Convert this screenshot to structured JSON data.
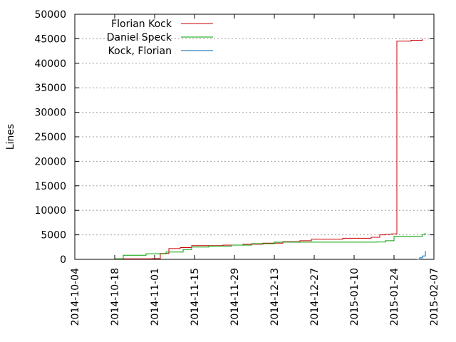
{
  "chart_data": {
    "type": "line",
    "title": "",
    "xlabel": "",
    "ylabel": "Lines",
    "xlim": [
      "2014-10-04",
      "2015-02-07"
    ],
    "ylim": [
      0,
      50000
    ],
    "x_ticks": [
      "2014-10-04",
      "2014-10-18",
      "2014-11-01",
      "2014-11-15",
      "2014-11-29",
      "2014-12-13",
      "2014-12-27",
      "2015-01-10",
      "2015-01-24",
      "2015-02-07"
    ],
    "y_ticks": [
      "0",
      "5000",
      "10000",
      "15000",
      "20000",
      "25000",
      "30000",
      "35000",
      "40000",
      "45000",
      "50000"
    ],
    "grid": "horizontal dotted",
    "legend_position": "top-left",
    "series": [
      {
        "name": "Florian Kock",
        "color": "#cc0000",
        "x": [
          "2014-10-18",
          "2014-10-31",
          "2014-11-03",
          "2014-11-06",
          "2014-11-10",
          "2014-11-14",
          "2014-11-18",
          "2014-11-25",
          "2014-12-02",
          "2014-12-09",
          "2014-12-16",
          "2014-12-22",
          "2014-12-26",
          "2015-01-06",
          "2015-01-16",
          "2015-01-19",
          "2015-01-21",
          "2015-01-23",
          "2015-01-25",
          "2015-01-30",
          "2015-02-03"
        ],
        "y": [
          100,
          150,
          1200,
          2200,
          2400,
          2800,
          2800,
          2900,
          3100,
          3300,
          3600,
          3800,
          4100,
          4300,
          4500,
          5000,
          5100,
          5200,
          44500,
          44700,
          45000
        ]
      },
      {
        "name": "Daniel Speck",
        "color": "#00a000",
        "x": [
          "2014-10-18",
          "2014-10-21",
          "2014-10-29",
          "2014-11-05",
          "2014-11-11",
          "2014-11-14",
          "2014-11-20",
          "2014-11-28",
          "2014-12-05",
          "2014-12-13",
          "2015-01-18",
          "2015-01-21",
          "2015-01-24",
          "2015-02-03",
          "2015-02-04"
        ],
        "y": [
          100,
          850,
          1150,
          1500,
          2000,
          2500,
          2700,
          2900,
          3200,
          3500,
          3550,
          3800,
          4700,
          5100,
          5400
        ]
      },
      {
        "name": "Kock, Florian",
        "color": "#0060ad",
        "x": [
          "2015-02-01",
          "2015-02-02",
          "2015-02-03",
          "2015-02-04",
          "2015-02-04"
        ],
        "y": [
          0,
          300,
          700,
          1200,
          1700
        ]
      }
    ]
  }
}
